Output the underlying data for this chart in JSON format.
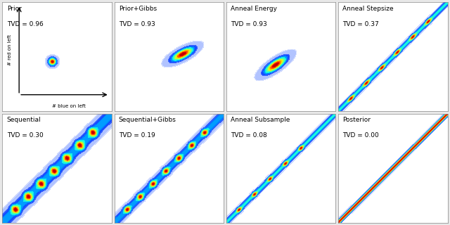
{
  "panels": [
    {
      "title": "Prior",
      "tvd": 0.96,
      "row": 0,
      "col": 0,
      "type": "small_circle",
      "show_axes": true
    },
    {
      "title": "Prior+Gibbs",
      "tvd": 0.93,
      "row": 0,
      "col": 1,
      "type": "small_ellipse",
      "show_axes": false
    },
    {
      "title": "Anneal Energy",
      "tvd": 0.93,
      "row": 0,
      "col": 2,
      "type": "small_ellipse2",
      "show_axes": false
    },
    {
      "title": "Anneal Stepsize",
      "tvd": 0.37,
      "row": 0,
      "col": 3,
      "type": "diagonal_band",
      "show_axes": false
    },
    {
      "title": "Sequential",
      "tvd": 0.3,
      "row": 1,
      "col": 0,
      "type": "diagonal_wide",
      "show_axes": false
    },
    {
      "title": "Sequential+Gibbs",
      "tvd": 0.19,
      "row": 1,
      "col": 1,
      "type": "diagonal_med",
      "show_axes": false
    },
    {
      "title": "Anneal Subsample",
      "tvd": 0.08,
      "row": 1,
      "col": 2,
      "type": "diagonal_thin",
      "show_axes": false
    },
    {
      "title": "Posterior",
      "tvd": 0.0,
      "row": 1,
      "col": 3,
      "type": "diagonal_posterior",
      "show_axes": false
    }
  ],
  "bg_color": "#e8e8e8",
  "panel_bg": "#ffffff",
  "title_fontsize": 6.5,
  "tvd_fontsize": 6.5,
  "contour_levels": 10
}
